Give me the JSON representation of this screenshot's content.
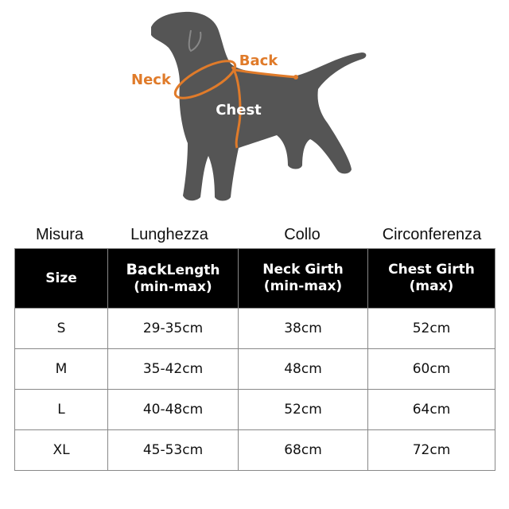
{
  "diagram": {
    "labels": {
      "neck": "Neck",
      "back": "Back",
      "chest": "Chest"
    }
  },
  "table": {
    "captions": [
      "Misura",
      "Lunghezza",
      "Collo",
      "Circonferenza"
    ],
    "header": [
      {
        "line1": "Size"
      },
      {
        "line1": "Back",
        "line1b": "Length",
        "line2": "(min-max)"
      },
      {
        "line1": "Neck Girth",
        "line2": "(min-max)"
      },
      {
        "line1": "Chest Girth",
        "line2": "(max)"
      }
    ],
    "rows": [
      [
        "S",
        "29-35cm",
        "38cm",
        "52cm"
      ],
      [
        "M",
        "35-42cm",
        "48cm",
        "60cm"
      ],
      [
        "L",
        "40-48cm",
        "52cm",
        "64cm"
      ],
      [
        "XL",
        "45-53cm",
        "68cm",
        "72cm"
      ]
    ]
  }
}
